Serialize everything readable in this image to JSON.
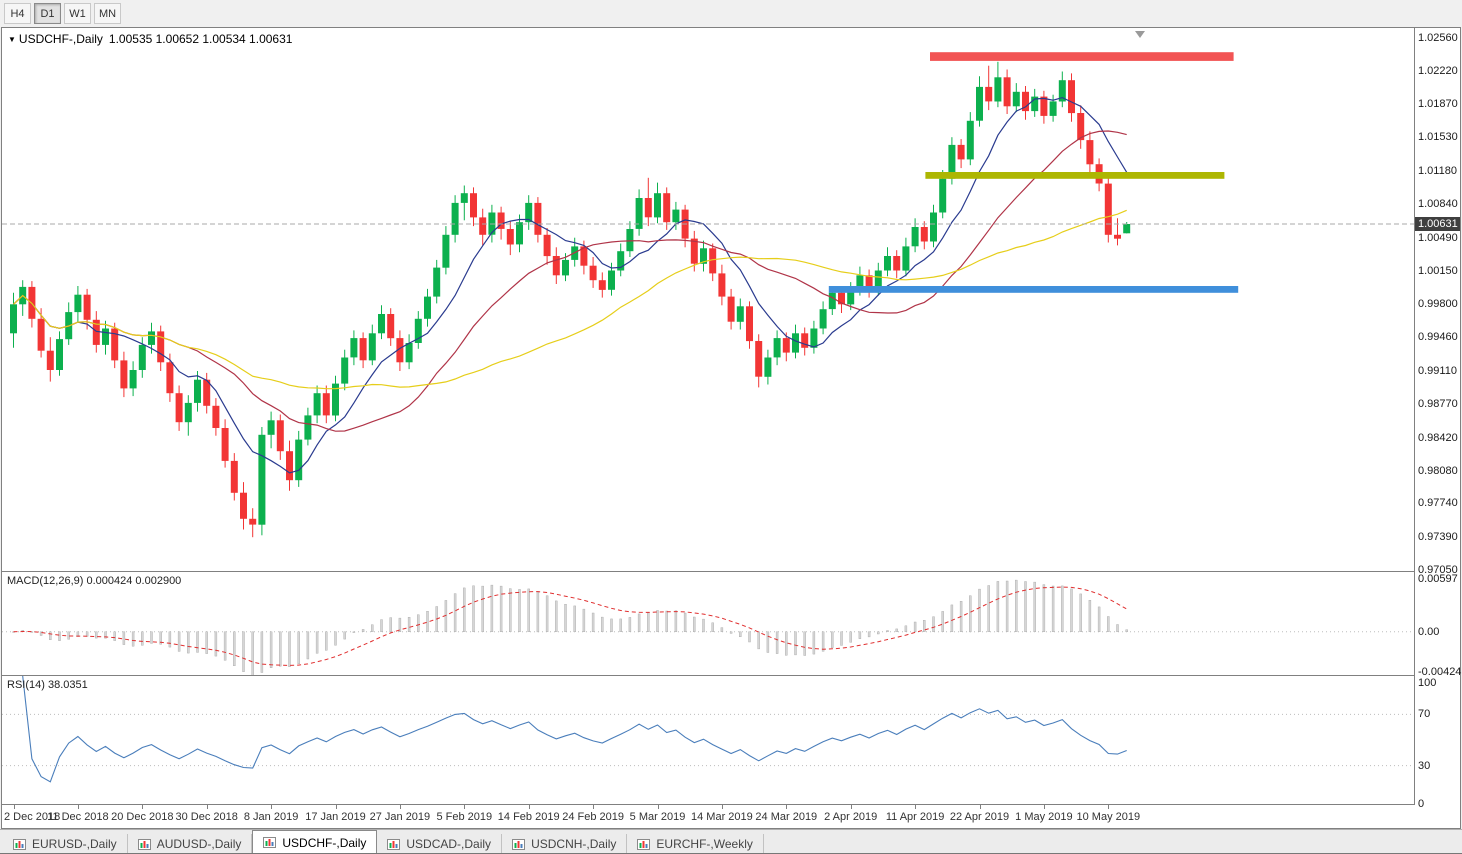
{
  "toolbar": {
    "timeframes": [
      {
        "label": "H4",
        "active": false
      },
      {
        "label": "D1",
        "active": true
      },
      {
        "label": "W1",
        "active": false
      },
      {
        "label": "MN",
        "active": false
      }
    ]
  },
  "chart": {
    "title_symbol": "USDCHF-,Daily",
    "title_ohlc": "1.00535 1.00652 1.00534 1.00631",
    "price_badge": "1.00631",
    "current_price": 1.00631,
    "price_axis_labels": [
      "1.02560",
      "1.02220",
      "1.01870",
      "1.01530",
      "1.01180",
      "1.00840",
      "1.00490",
      "1.00150",
      "0.99800",
      "0.99460",
      "0.99110",
      "0.98770",
      "0.98420",
      "0.98080",
      "0.97740",
      "0.97390",
      "0.97050"
    ],
    "colors": {
      "bull": "#0cb04e",
      "bear": "#f23535",
      "price_line": "#a8a8a8",
      "badge_bg": "#3f3f3f",
      "badge_text": "#ffffff",
      "grid_dotted": "#bdbdbd"
    },
    "overlays": [
      {
        "name": "resistance-zone",
        "color": "#f25454",
        "price_top": 1.0241,
        "price_bottom": 1.0232,
        "index_start": 100,
        "index_end": 133
      },
      {
        "name": "broken-support-zone",
        "color": "#adb602",
        "price_top": 1.0117,
        "price_bottom": 1.011,
        "index_start": 99.5,
        "index_end": 132
      },
      {
        "name": "support-zone",
        "color": "#3f8fdb",
        "price_top": 0.9999,
        "price_bottom": 0.9992,
        "index_start": 89,
        "index_end": 133.5
      }
    ]
  },
  "chart_data": {
    "type": "candlestick",
    "symbol": "USDCHF",
    "timeframe": "Daily",
    "price_max": 1.0266,
    "price_min": 0.9704,
    "moving_averages": [
      {
        "name": "ma-fast",
        "period": 8,
        "color": "#2a3b8f"
      },
      {
        "name": "ma-medium",
        "period": 20,
        "color": "#b03448"
      },
      {
        "name": "ma-slow",
        "period": 40,
        "color": "#e6ce1a"
      }
    ],
    "date_labels": [
      {
        "label": "2 Dec 2018",
        "index": 0
      },
      {
        "label": "11 Dec 2018",
        "index": 7
      },
      {
        "label": "20 Dec 2018",
        "index": 14
      },
      {
        "label": "30 Dec 2018",
        "index": 21
      },
      {
        "label": "8 Jan 2019",
        "index": 28
      },
      {
        "label": "17 Jan 2019",
        "index": 35
      },
      {
        "label": "27 Jan 2019",
        "index": 42
      },
      {
        "label": "5 Feb 2019",
        "index": 49
      },
      {
        "label": "14 Feb 2019",
        "index": 56
      },
      {
        "label": "24 Feb 2019",
        "index": 63
      },
      {
        "label": "5 Mar 2019",
        "index": 70
      },
      {
        "label": "14 Mar 2019",
        "index": 77
      },
      {
        "label": "24 Mar 2019",
        "index": 84
      },
      {
        "label": "2 Apr 2019",
        "index": 91
      },
      {
        "label": "11 Apr 2019",
        "index": 98
      },
      {
        "label": "22 Apr 2019",
        "index": 105
      },
      {
        "label": "1 May 2019",
        "index": 112
      },
      {
        "label": "10 May 2019",
        "index": 119
      }
    ],
    "candles": [
      [
        0.995,
        0.9992,
        0.9935,
        0.998
      ],
      [
        0.998,
        1.0005,
        0.9968,
        0.9998
      ],
      [
        0.9998,
        1.0004,
        0.9956,
        0.9965
      ],
      [
        0.9965,
        0.9976,
        0.9925,
        0.9932
      ],
      [
        0.9932,
        0.9946,
        0.99,
        0.9912
      ],
      [
        0.9912,
        0.9952,
        0.9906,
        0.9944
      ],
      [
        0.9944,
        0.9982,
        0.9938,
        0.9972
      ],
      [
        0.9972,
        0.9999,
        0.9962,
        0.999
      ],
      [
        0.999,
        0.9996,
        0.9954,
        0.9964
      ],
      [
        0.9964,
        0.9973,
        0.993,
        0.9938
      ],
      [
        0.9938,
        0.9963,
        0.9928,
        0.9955
      ],
      [
        0.9955,
        0.9961,
        0.9914,
        0.9922
      ],
      [
        0.9922,
        0.9931,
        0.9884,
        0.9893
      ],
      [
        0.9893,
        0.9921,
        0.9885,
        0.9912
      ],
      [
        0.9912,
        0.9946,
        0.9904,
        0.9938
      ],
      [
        0.9938,
        0.9961,
        0.9929,
        0.9952
      ],
      [
        0.9952,
        0.9958,
        0.9911,
        0.992
      ],
      [
        0.992,
        0.9929,
        0.9879,
        0.9888
      ],
      [
        0.9888,
        0.9896,
        0.9849,
        0.9858
      ],
      [
        0.9858,
        0.9886,
        0.9844,
        0.9878
      ],
      [
        0.9878,
        0.9911,
        0.9869,
        0.9902
      ],
      [
        0.9902,
        0.9909,
        0.9867,
        0.9875
      ],
      [
        0.9875,
        0.9883,
        0.9844,
        0.9852
      ],
      [
        0.9852,
        0.9861,
        0.9811,
        0.9818
      ],
      [
        0.9818,
        0.9826,
        0.9777,
        0.9785
      ],
      [
        0.9785,
        0.9796,
        0.9747,
        0.9758
      ],
      [
        0.9758,
        0.9769,
        0.9739,
        0.9752
      ],
      [
        0.9752,
        0.9853,
        0.9741,
        0.9845
      ],
      [
        0.9845,
        0.9869,
        0.9831,
        0.986
      ],
      [
        0.986,
        0.9866,
        0.9819,
        0.9828
      ],
      [
        0.9828,
        0.9839,
        0.9787,
        0.9798
      ],
      [
        0.9798,
        0.9849,
        0.9791,
        0.984
      ],
      [
        0.984,
        0.9873,
        0.9834,
        0.9865
      ],
      [
        0.9865,
        0.9896,
        0.9857,
        0.9888
      ],
      [
        0.9888,
        0.9896,
        0.9857,
        0.9865
      ],
      [
        0.9865,
        0.9906,
        0.9859,
        0.9898
      ],
      [
        0.9898,
        0.9933,
        0.9891,
        0.9925
      ],
      [
        0.9925,
        0.9953,
        0.9917,
        0.9945
      ],
      [
        0.9945,
        0.9951,
        0.9914,
        0.9922
      ],
      [
        0.9922,
        0.9959,
        0.9917,
        0.995
      ],
      [
        0.995,
        0.9979,
        0.9944,
        0.997
      ],
      [
        0.997,
        0.9976,
        0.9937,
        0.9945
      ],
      [
        0.9945,
        0.9953,
        0.9911,
        0.992
      ],
      [
        0.992,
        0.9949,
        0.9913,
        0.994
      ],
      [
        0.994,
        0.9973,
        0.9934,
        0.9965
      ],
      [
        0.9965,
        0.9996,
        0.9957,
        0.9988
      ],
      [
        0.9988,
        1.0026,
        0.9981,
        1.0018
      ],
      [
        1.0018,
        1.0061,
        1.0011,
        1.0052
      ],
      [
        1.0052,
        1.0093,
        1.0044,
        1.0085
      ],
      [
        1.0085,
        1.0103,
        1.0067,
        1.0095
      ],
      [
        1.0095,
        1.0101,
        1.0061,
        1.007
      ],
      [
        1.007,
        1.0079,
        1.0041,
        1.0052
      ],
      [
        1.0052,
        1.0083,
        1.0044,
        1.0075
      ],
      [
        1.0075,
        1.0081,
        1.0047,
        1.0058
      ],
      [
        1.0058,
        1.0066,
        1.0031,
        1.0042
      ],
      [
        1.0042,
        1.0073,
        1.0034,
        1.0065
      ],
      [
        1.0065,
        1.0093,
        1.0057,
        1.0085
      ],
      [
        1.0085,
        1.0091,
        1.0044,
        1.0052
      ],
      [
        1.0052,
        1.0059,
        1.0021,
        1.003
      ],
      [
        1.003,
        1.0039,
        1.0001,
        1.001
      ],
      [
        1.001,
        1.0033,
        1.0004,
        1.0026
      ],
      [
        1.0026,
        1.0049,
        1.0019,
        1.004
      ],
      [
        1.004,
        1.0046,
        1.0011,
        1.002
      ],
      [
        1.002,
        1.0029,
        0.9997,
        1.0005
      ],
      [
        1.0005,
        1.0013,
        0.9987,
        0.9995
      ],
      [
        0.9995,
        1.0023,
        0.9989,
        1.0015
      ],
      [
        1.0015,
        1.0043,
        1.0009,
        1.0035
      ],
      [
        1.0035,
        1.0066,
        1.0029,
        1.0058
      ],
      [
        1.0058,
        1.0099,
        1.0051,
        1.009
      ],
      [
        1.009,
        1.0111,
        1.0061,
        1.007
      ],
      [
        1.007,
        1.0106,
        1.0064,
        1.0095
      ],
      [
        1.0095,
        1.0101,
        1.0057,
        1.0065
      ],
      [
        1.0065,
        1.0086,
        1.0057,
        1.0078
      ],
      [
        1.0078,
        1.0083,
        1.0039,
        1.0048
      ],
      [
        1.0048,
        1.0056,
        1.0014,
        1.0022
      ],
      [
        1.0022,
        1.0046,
        1.0014,
        1.0038
      ],
      [
        1.0038,
        1.0043,
        1.0004,
        1.0012
      ],
      [
        1.0012,
        1.0021,
        0.9979,
        0.9988
      ],
      [
        0.9988,
        0.9996,
        0.9954,
        0.9962
      ],
      [
        0.9962,
        0.9986,
        0.9954,
        0.9978
      ],
      [
        0.9978,
        0.9983,
        0.9934,
        0.9942
      ],
      [
        0.9942,
        0.9949,
        0.9894,
        0.9905
      ],
      [
        0.9905,
        0.9933,
        0.9897,
        0.9925
      ],
      [
        0.9925,
        0.9953,
        0.9917,
        0.9945
      ],
      [
        0.9945,
        0.9951,
        0.9921,
        0.993
      ],
      [
        0.993,
        0.9959,
        0.9924,
        0.995
      ],
      [
        0.995,
        0.9956,
        0.9927,
        0.9935
      ],
      [
        0.9935,
        0.9963,
        0.9929,
        0.9955
      ],
      [
        0.9955,
        0.9983,
        0.9949,
        0.9975
      ],
      [
        0.9975,
        0.9999,
        0.9969,
        0.9992
      ],
      [
        0.9992,
        0.9999,
        0.9971,
        0.998
      ],
      [
        0.998,
        1.0003,
        0.9974,
        0.9996
      ],
      [
        0.9996,
        1.0019,
        0.9989,
        1.001
      ],
      [
        1.001,
        1.0016,
        0.9987,
        0.9995
      ],
      [
        0.9995,
        1.0023,
        0.9989,
        1.0015
      ],
      [
        1.0015,
        1.0039,
        1.0009,
        1.003
      ],
      [
        1.003,
        1.0036,
        1.0007,
        1.0015
      ],
      [
        1.0015,
        1.0049,
        1.0009,
        1.004
      ],
      [
        1.004,
        1.0069,
        1.0034,
        1.006
      ],
      [
        1.006,
        1.0066,
        1.0037,
        1.0045
      ],
      [
        1.0045,
        1.0083,
        1.0039,
        1.0075
      ],
      [
        1.0075,
        1.0119,
        1.0069,
        1.011
      ],
      [
        1.011,
        1.0153,
        1.0104,
        1.0145
      ],
      [
        1.0145,
        1.0151,
        1.0121,
        1.013
      ],
      [
        1.013,
        1.0179,
        1.0124,
        1.017
      ],
      [
        1.017,
        1.0216,
        1.0164,
        1.0205
      ],
      [
        1.0205,
        1.0227,
        1.0181,
        1.019
      ],
      [
        1.019,
        1.0231,
        1.0184,
        1.0215
      ],
      [
        1.0215,
        1.0223,
        1.0177,
        1.0185
      ],
      [
        1.0185,
        1.0209,
        1.0179,
        1.02
      ],
      [
        1.02,
        1.0206,
        1.0171,
        1.018
      ],
      [
        1.018,
        1.0203,
        1.0174,
        1.0195
      ],
      [
        1.0195,
        1.0201,
        1.0167,
        1.0175
      ],
      [
        1.0175,
        1.0197,
        1.0169,
        1.019
      ],
      [
        1.019,
        1.0221,
        1.0184,
        1.0212
      ],
      [
        1.0212,
        1.0219,
        1.0169,
        1.0178
      ],
      [
        1.0178,
        1.0186,
        1.0141,
        1.015
      ],
      [
        1.015,
        1.0159,
        1.0117,
        1.0125
      ],
      [
        1.0125,
        1.0131,
        1.0097,
        1.0105
      ],
      [
        1.0105,
        1.0111,
        1.0044,
        1.0052
      ],
      [
        1.0052,
        1.0069,
        1.0041,
        1.0048
      ],
      [
        1.00535,
        1.00652,
        1.00534,
        1.00631
      ]
    ]
  },
  "macd": {
    "label": "MACD(12,26,9)",
    "values_text": "0.000424 0.002900",
    "params": {
      "fast": 12,
      "slow": 26,
      "signal": 9
    },
    "scale": {
      "max": 0.0063,
      "min": -0.00455
    },
    "axis_labels": [
      {
        "text": "0.00597",
        "value": 0.00597
      },
      {
        "text": "0.00",
        "value": 0
      },
      {
        "text": "-0.00424",
        "value": -0.00424
      }
    ],
    "colors": {
      "histogram": "#d6d6d6",
      "histogram_stroke": "#a6a6a6",
      "signal": "#e02f2f"
    }
  },
  "rsi": {
    "label": "RSI(14)",
    "value_text": "38.0351",
    "period": 14,
    "level_lines": [
      70,
      30
    ],
    "axis_labels": [
      {
        "text": "100",
        "value": 100
      },
      {
        "text": "70",
        "value": 70
      },
      {
        "text": "30",
        "value": 30
      },
      {
        "text": "0",
        "value": 0
      }
    ],
    "colors": {
      "line": "#4a7ebb"
    }
  },
  "bottom_tabs": {
    "tabs": [
      {
        "label": "EURUSD-,Daily",
        "active": false
      },
      {
        "label": "AUDUSD-,Daily",
        "active": false
      },
      {
        "label": "USDCHF-,Daily",
        "active": true
      },
      {
        "label": "USDCAD-,Daily",
        "active": false
      },
      {
        "label": "USDCNH-,Daily",
        "active": false
      },
      {
        "label": "EURCHF-,Weekly",
        "active": false
      }
    ]
  }
}
